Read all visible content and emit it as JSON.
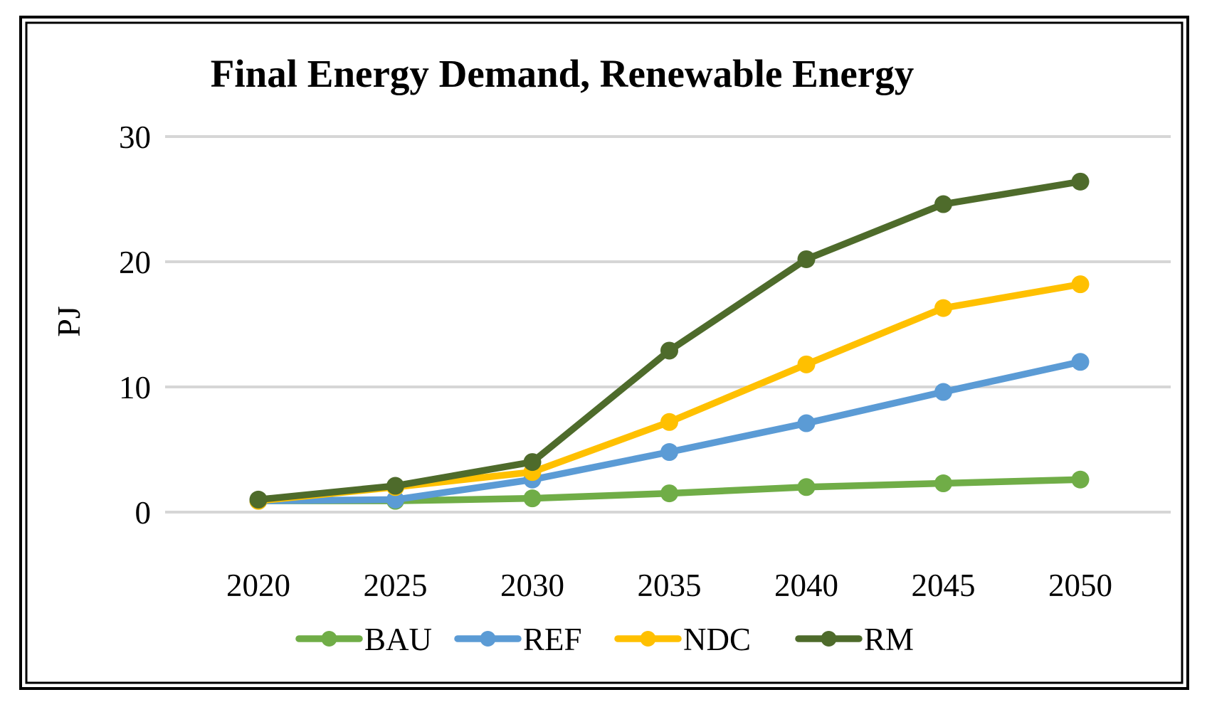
{
  "figure": {
    "background": "#FFFFFF",
    "frame_color": "#000000"
  },
  "chart_data": {
    "type": "line",
    "title": "Final Energy Demand, Renewable Energy",
    "ylabel": "PJ",
    "xlabel": "",
    "x": [
      2020,
      2025,
      2030,
      2035,
      2040,
      2045,
      2050
    ],
    "y_ticks": [
      0,
      10,
      20,
      30
    ],
    "ylim": [
      0,
      30
    ],
    "grid": "horizontal-only",
    "gridline_color": "#D6D6D6",
    "legend_position": "bottom",
    "marker": "circle",
    "series": [
      {
        "name": "BAU",
        "color": "#70AD47",
        "values": [
          0.9,
          0.9,
          1.1,
          1.5,
          2.0,
          2.3,
          2.6
        ]
      },
      {
        "name": "REF",
        "color": "#5B9BD5",
        "values": [
          0.9,
          1.0,
          2.6,
          4.8,
          7.1,
          9.6,
          12.0
        ]
      },
      {
        "name": "NDC",
        "color": "#FFC000",
        "values": [
          0.9,
          2.0,
          3.2,
          7.2,
          11.8,
          16.3,
          18.2
        ]
      },
      {
        "name": "RM",
        "color": "#4E6B2B",
        "values": [
          1.0,
          2.1,
          4.0,
          12.9,
          20.2,
          24.6,
          26.4
        ]
      }
    ]
  }
}
